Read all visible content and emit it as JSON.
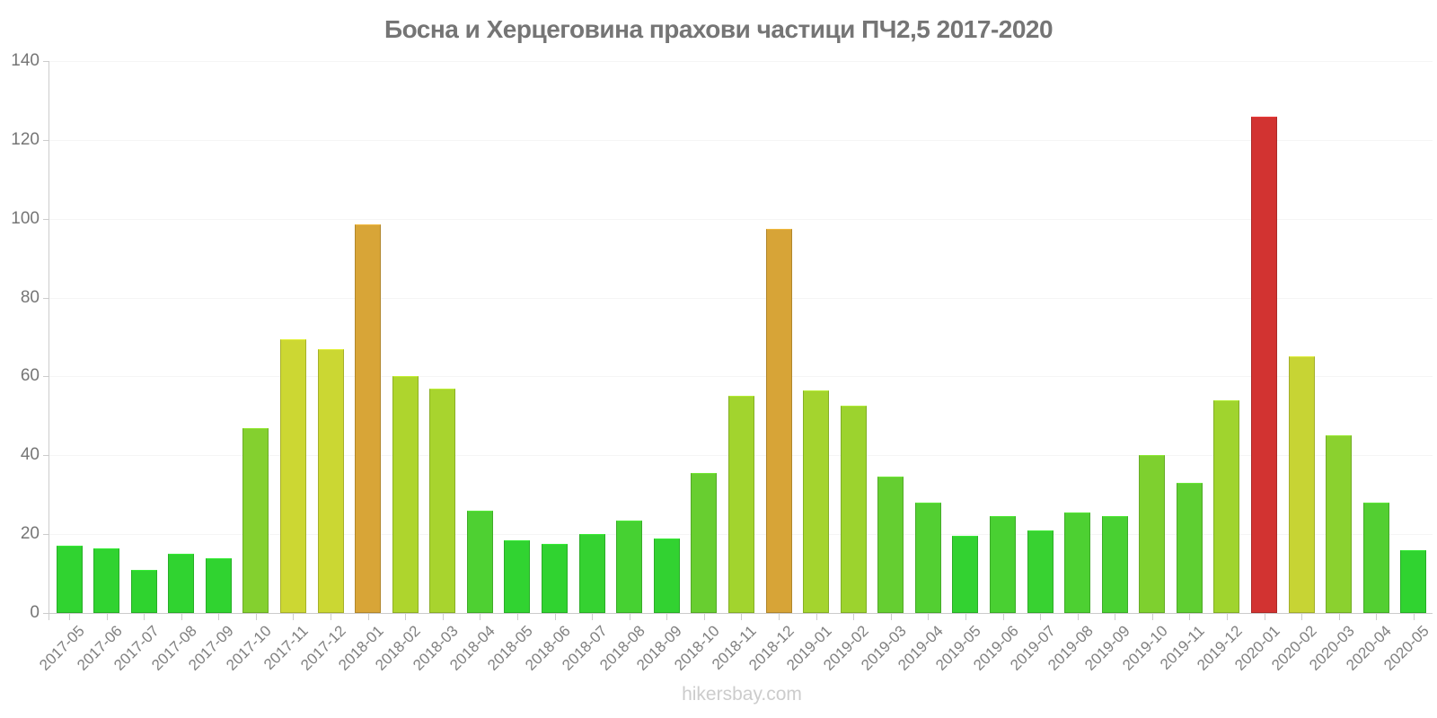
{
  "title": "Босна и Херцеговина прахови частици ПЧ2,5 2017-2020",
  "watermark": "hikersbay.com",
  "colors": {
    "title_text": "#757575",
    "axis_line": "#cccccc",
    "gridline": "#f5f5f5",
    "y_tick_text": "#757575",
    "x_tick_text": "#808080",
    "watermark_text": "#cccccc",
    "low_green": "#30d330",
    "mid_yellow_green": "#a4d42e",
    "yellow": "#ccd733",
    "high_orange": "#d8a537",
    "peak_red": "#d23331"
  },
  "chart_data": {
    "type": "bar",
    "title": "Босна и Херцеговина прахови частици ПЧ2,5 2017-2020",
    "xlabel": "",
    "ylabel": "",
    "ylim": [
      0,
      140
    ],
    "yticks": [
      0,
      20,
      40,
      60,
      80,
      100,
      120,
      140
    ],
    "grid": "horizontal",
    "legend": "none",
    "x_tick_rotation": -45,
    "categories": [
      "2017-05",
      "2017-06",
      "2017-07",
      "2017-08",
      "2017-09",
      "2017-10",
      "2017-11",
      "2017-12",
      "2018-01",
      "2018-02",
      "2018-03",
      "2018-04",
      "2018-05",
      "2018-06",
      "2018-07",
      "2018-08",
      "2018-09",
      "2018-10",
      "2018-11",
      "2018-12",
      "2019-01",
      "2019-02",
      "2019-03",
      "2019-04",
      "2019-05",
      "2019-06",
      "2019-07",
      "2019-08",
      "2019-09",
      "2019-10",
      "2019-11",
      "2019-12",
      "2020-01",
      "2020-02",
      "2020-03",
      "2020-04",
      "2020-05"
    ],
    "values": [
      17,
      16.5,
      11,
      15,
      14,
      47,
      69.5,
      67,
      98.5,
      60,
      57,
      26,
      18.5,
      17.5,
      20,
      23.5,
      19,
      35.5,
      55,
      97.5,
      56.5,
      52.5,
      34.5,
      28,
      19.5,
      24.5,
      21,
      25.5,
      24.5,
      40,
      33,
      54,
      126,
      65,
      45,
      28,
      16
    ],
    "bar_colors": [
      "#30d330",
      "#30d330",
      "#2fd32f",
      "#30d330",
      "#30d330",
      "#84d02f",
      "#ccd733",
      "#cbd733",
      "#d8a537",
      "#aed52d",
      "#a8d42e",
      "#4ed032",
      "#31d331",
      "#30d330",
      "#35d231",
      "#46d132",
      "#32d231",
      "#68ce30",
      "#a2d42e",
      "#d7a437",
      "#a4d42e",
      "#9cd32e",
      "#65ce31",
      "#53cf32",
      "#33d231",
      "#49d032",
      "#38d231",
      "#4dd032",
      "#49d032",
      "#7ed02f",
      "#5fce31",
      "#a0d42e",
      "#d23331",
      "#c7d434",
      "#8bd12f",
      "#53cf32",
      "#30d330"
    ]
  }
}
